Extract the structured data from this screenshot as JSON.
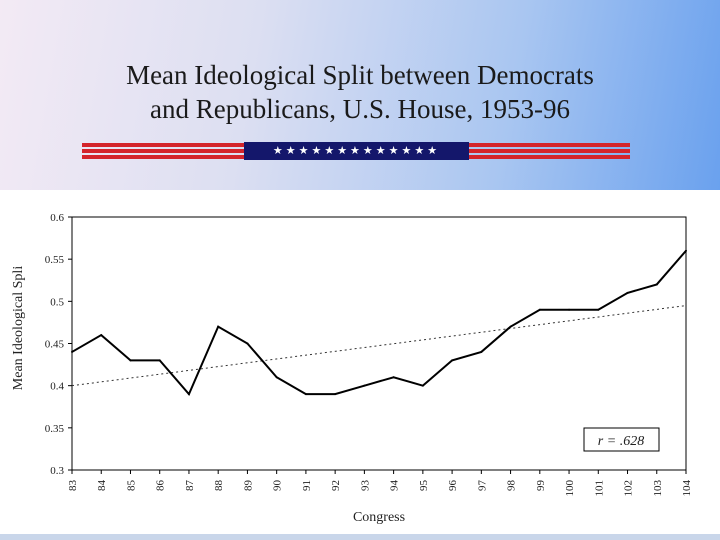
{
  "slide": {
    "title_line1": "Mean Ideological Split between Democrats",
    "title_line2": "and Republicans, U.S. House, 1953-96",
    "star_count": 13,
    "colors": {
      "stripe": "#d4242b",
      "star_field": "#14176b"
    }
  },
  "chart_data": {
    "type": "line",
    "xlabel": "Congress",
    "ylabel": "Mean Ideological Spli",
    "ylim": [
      0.3,
      0.6
    ],
    "yticks": [
      "0.3",
      "0.35",
      "0.4",
      "0.45",
      "0.5",
      "0.55",
      "0.6"
    ],
    "categories": [
      "83",
      "84",
      "85",
      "86",
      "87",
      "88",
      "89",
      "90",
      "91",
      "92",
      "93",
      "94",
      "95",
      "96",
      "97",
      "98",
      "99",
      "100",
      "101",
      "102",
      "103",
      "104"
    ],
    "series": [
      {
        "values": [
          0.44,
          0.46,
          0.43,
          0.43,
          0.39,
          0.47,
          0.45,
          0.41,
          0.39,
          0.39,
          0.4,
          0.41,
          0.4,
          0.43,
          0.44,
          0.47,
          0.49,
          0.49,
          0.49,
          0.51,
          0.52,
          0.56
        ]
      }
    ],
    "trendline": {
      "start": 0.4,
      "end": 0.495
    },
    "annotation": "r = .628"
  }
}
